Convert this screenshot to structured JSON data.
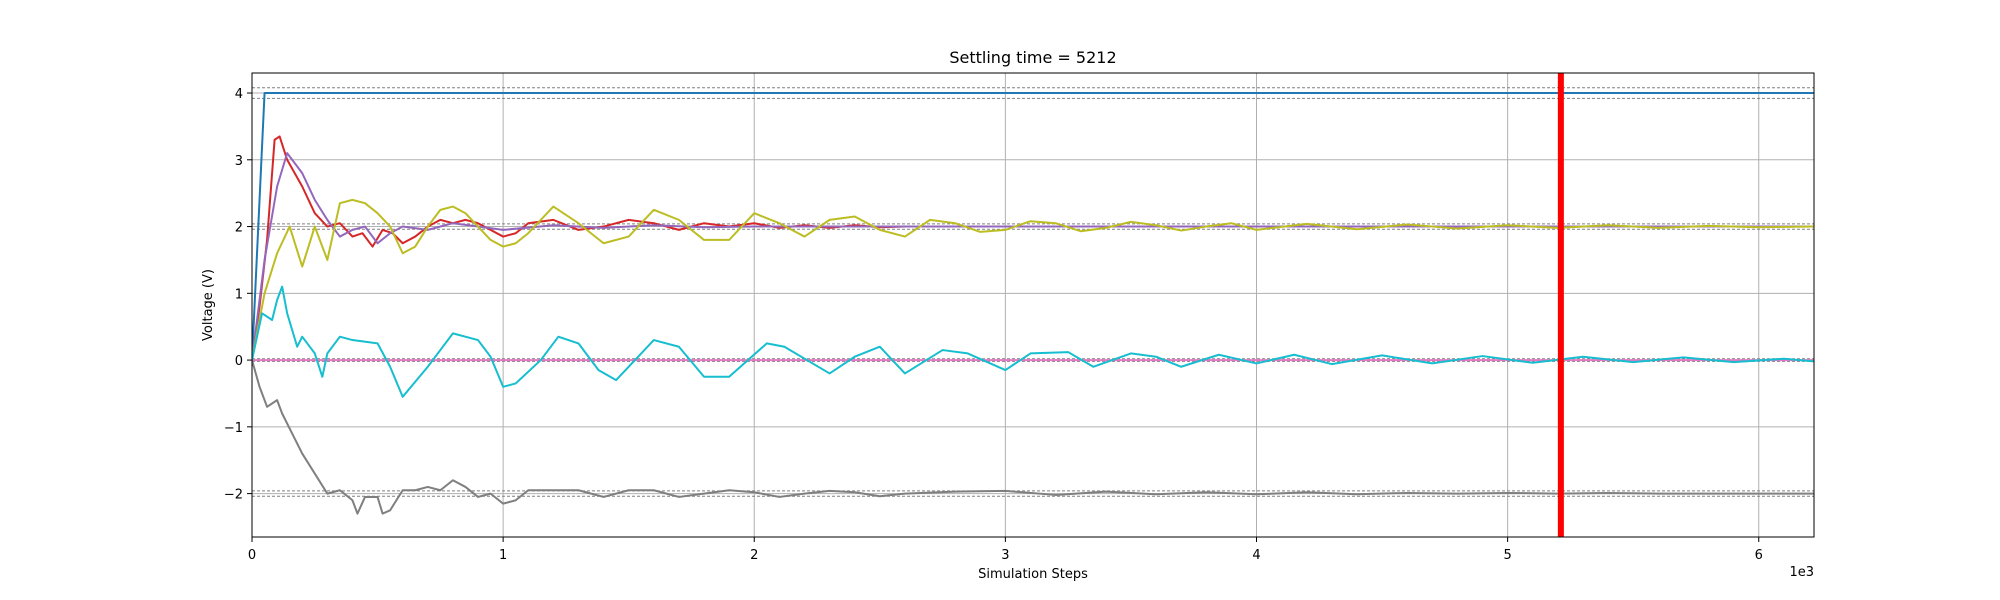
{
  "chart_data": {
    "type": "line",
    "title": "Settling time = 5212",
    "xlabel": "Simulation Steps",
    "ylabel": "Voltage (V)",
    "x_offset_label": "1e3",
    "xlim": [
      0,
      6.22
    ],
    "ylim": [
      -2.65,
      4.3
    ],
    "x_ticks": [
      0,
      1,
      2,
      3,
      4,
      5,
      6
    ],
    "y_ticks": [
      -2,
      -1,
      0,
      1,
      2,
      3,
      4
    ],
    "grid": true,
    "settling_time": 5.212,
    "settling_line_color": "#ff0000",
    "tolerance_bands": [
      {
        "target": 4,
        "low": 3.92,
        "high": 4.08
      },
      {
        "target": 2,
        "low": 1.96,
        "high": 2.04
      },
      {
        "target": 0,
        "low": -0.02,
        "high": 0.02
      },
      {
        "target": -2,
        "low": -2.04,
        "high": -1.96
      }
    ],
    "series": [
      {
        "color": "#1f77b4",
        "x": [
          0,
          0.05,
          6.22
        ],
        "y": [
          0,
          4.0,
          4.0
        ]
      },
      {
        "color": "#e377c2",
        "x": [
          0,
          6.22
        ],
        "y": [
          0,
          0
        ]
      },
      {
        "color": "#d62728",
        "x": [
          0,
          0.03,
          0.06,
          0.09,
          0.11,
          0.14,
          0.2,
          0.25,
          0.3,
          0.35,
          0.4,
          0.44,
          0.48,
          0.52,
          0.56,
          0.6,
          0.65,
          0.7,
          0.75,
          0.8,
          0.85,
          0.9,
          0.95,
          1.0,
          1.05,
          1.1,
          1.2,
          1.3,
          1.4,
          1.5,
          1.6,
          1.7,
          1.8,
          1.9,
          2.0,
          2.1,
          2.2,
          2.3,
          2.4,
          2.5,
          2.6,
          6.22
        ],
        "y": [
          0,
          0.8,
          1.8,
          3.3,
          3.35,
          3.0,
          2.6,
          2.2,
          2.0,
          2.05,
          1.85,
          1.9,
          1.7,
          1.95,
          1.9,
          1.75,
          1.85,
          2.0,
          2.1,
          2.05,
          2.1,
          2.05,
          1.95,
          1.85,
          1.9,
          2.05,
          2.1,
          1.95,
          2.0,
          2.1,
          2.05,
          1.95,
          2.05,
          2.0,
          2.05,
          1.98,
          2.02,
          1.98,
          2.02,
          1.99,
          2.0,
          2.0
        ]
      },
      {
        "color": "#9467bd",
        "x": [
          0,
          0.05,
          0.1,
          0.14,
          0.2,
          0.25,
          0.3,
          0.35,
          0.4,
          0.45,
          0.5,
          0.55,
          0.6,
          0.7,
          0.8,
          0.9,
          1.0,
          1.2,
          1.4,
          1.6,
          1.8,
          2.0,
          6.22
        ],
        "y": [
          0,
          1.5,
          2.6,
          3.1,
          2.8,
          2.4,
          2.1,
          1.85,
          1.95,
          2.0,
          1.75,
          1.9,
          2.0,
          1.95,
          2.05,
          2.0,
          1.95,
          2.02,
          1.98,
          2.02,
          1.99,
          2.0,
          2.0
        ]
      },
      {
        "color": "#bcbd22",
        "x": [
          0,
          0.05,
          0.1,
          0.15,
          0.2,
          0.25,
          0.3,
          0.35,
          0.4,
          0.45,
          0.5,
          0.55,
          0.6,
          0.65,
          0.7,
          0.75,
          0.8,
          0.85,
          0.9,
          0.95,
          1.0,
          1.05,
          1.1,
          1.2,
          1.3,
          1.4,
          1.5,
          1.6,
          1.7,
          1.8,
          1.9,
          2.0,
          2.1,
          2.2,
          2.3,
          2.4,
          2.5,
          2.6,
          2.7,
          2.8,
          2.9,
          3.0,
          3.1,
          3.2,
          3.3,
          3.4,
          3.5,
          3.6,
          3.7,
          3.8,
          3.9,
          4.0,
          4.2,
          4.4,
          4.6,
          4.8,
          5.0,
          5.2,
          5.4,
          5.6,
          5.8,
          6.0,
          6.22
        ],
        "y": [
          0,
          1.0,
          1.6,
          2.0,
          1.4,
          2.0,
          1.5,
          2.35,
          2.4,
          2.35,
          2.2,
          2.0,
          1.6,
          1.7,
          2.0,
          2.25,
          2.3,
          2.2,
          2.0,
          1.8,
          1.7,
          1.75,
          1.9,
          2.3,
          2.05,
          1.75,
          1.85,
          2.25,
          2.1,
          1.8,
          1.8,
          2.2,
          2.05,
          1.85,
          2.1,
          2.15,
          1.95,
          1.85,
          2.1,
          2.05,
          1.92,
          1.95,
          2.08,
          2.05,
          1.93,
          1.98,
          2.07,
          2.02,
          1.94,
          2.0,
          2.05,
          1.95,
          2.04,
          1.96,
          2.03,
          1.97,
          2.02,
          1.98,
          2.02,
          1.98,
          2.01,
          1.99,
          2.0
        ]
      },
      {
        "color": "#17becf",
        "x": [
          0,
          0.04,
          0.08,
          0.1,
          0.12,
          0.14,
          0.18,
          0.2,
          0.25,
          0.28,
          0.3,
          0.35,
          0.4,
          0.5,
          0.55,
          0.6,
          0.7,
          0.75,
          0.8,
          0.9,
          0.95,
          1.0,
          1.05,
          1.15,
          1.22,
          1.3,
          1.38,
          1.45,
          1.6,
          1.7,
          1.8,
          1.9,
          2.05,
          2.12,
          2.3,
          2.4,
          2.5,
          2.6,
          2.75,
          2.85,
          3.0,
          3.1,
          3.25,
          3.35,
          3.5,
          3.6,
          3.7,
          3.85,
          4.0,
          4.15,
          4.3,
          4.5,
          4.7,
          4.9,
          5.1,
          5.3,
          5.5,
          5.7,
          5.9,
          6.1,
          6.22
        ],
        "y": [
          0,
          0.7,
          0.6,
          0.9,
          1.1,
          0.7,
          0.2,
          0.35,
          0.1,
          -0.25,
          0.1,
          0.35,
          0.3,
          0.25,
          -0.1,
          -0.55,
          -0.1,
          0.15,
          0.4,
          0.3,
          0.05,
          -0.4,
          -0.35,
          0.0,
          0.35,
          0.25,
          -0.15,
          -0.3,
          0.3,
          0.2,
          -0.25,
          -0.25,
          0.25,
          0.2,
          -0.2,
          0.05,
          0.2,
          -0.2,
          0.15,
          0.1,
          -0.15,
          0.1,
          0.12,
          -0.1,
          0.1,
          0.05,
          -0.1,
          0.08,
          -0.05,
          0.08,
          -0.06,
          0.07,
          -0.05,
          0.06,
          -0.04,
          0.05,
          -0.03,
          0.04,
          -0.03,
          0.02,
          -0.02
        ]
      },
      {
        "color": "#7f7f7f",
        "x": [
          0,
          0.03,
          0.06,
          0.1,
          0.12,
          0.16,
          0.2,
          0.25,
          0.3,
          0.35,
          0.4,
          0.42,
          0.45,
          0.5,
          0.52,
          0.55,
          0.6,
          0.65,
          0.7,
          0.75,
          0.8,
          0.85,
          0.9,
          0.95,
          1.0,
          1.05,
          1.1,
          1.2,
          1.3,
          1.4,
          1.5,
          1.6,
          1.7,
          1.8,
          1.9,
          2.0,
          2.1,
          2.2,
          2.3,
          2.4,
          2.5,
          2.6,
          2.8,
          3.0,
          3.2,
          3.4,
          3.6,
          3.8,
          4.0,
          4.2,
          4.4,
          4.6,
          4.8,
          5.0,
          5.2,
          5.4,
          5.6,
          5.8,
          6.0,
          6.22
        ],
        "y": [
          0,
          -0.4,
          -0.7,
          -0.6,
          -0.8,
          -1.1,
          -1.4,
          -1.7,
          -2.0,
          -1.95,
          -2.1,
          -2.3,
          -2.05,
          -2.05,
          -2.3,
          -2.25,
          -1.95,
          -1.95,
          -1.9,
          -1.95,
          -1.8,
          -1.9,
          -2.05,
          -2.0,
          -2.15,
          -2.1,
          -1.95,
          -1.95,
          -1.95,
          -2.05,
          -1.95,
          -1.95,
          -2.05,
          -2.0,
          -1.95,
          -1.98,
          -2.05,
          -2.0,
          -1.96,
          -1.98,
          -2.04,
          -2.0,
          -1.97,
          -1.96,
          -2.02,
          -1.97,
          -2.01,
          -1.98,
          -2.01,
          -1.98,
          -2.01,
          -1.99,
          -2.0,
          -1.99,
          -2.0,
          -1.99,
          -2.0,
          -2.0,
          -2.0,
          -2.0
        ]
      }
    ]
  }
}
